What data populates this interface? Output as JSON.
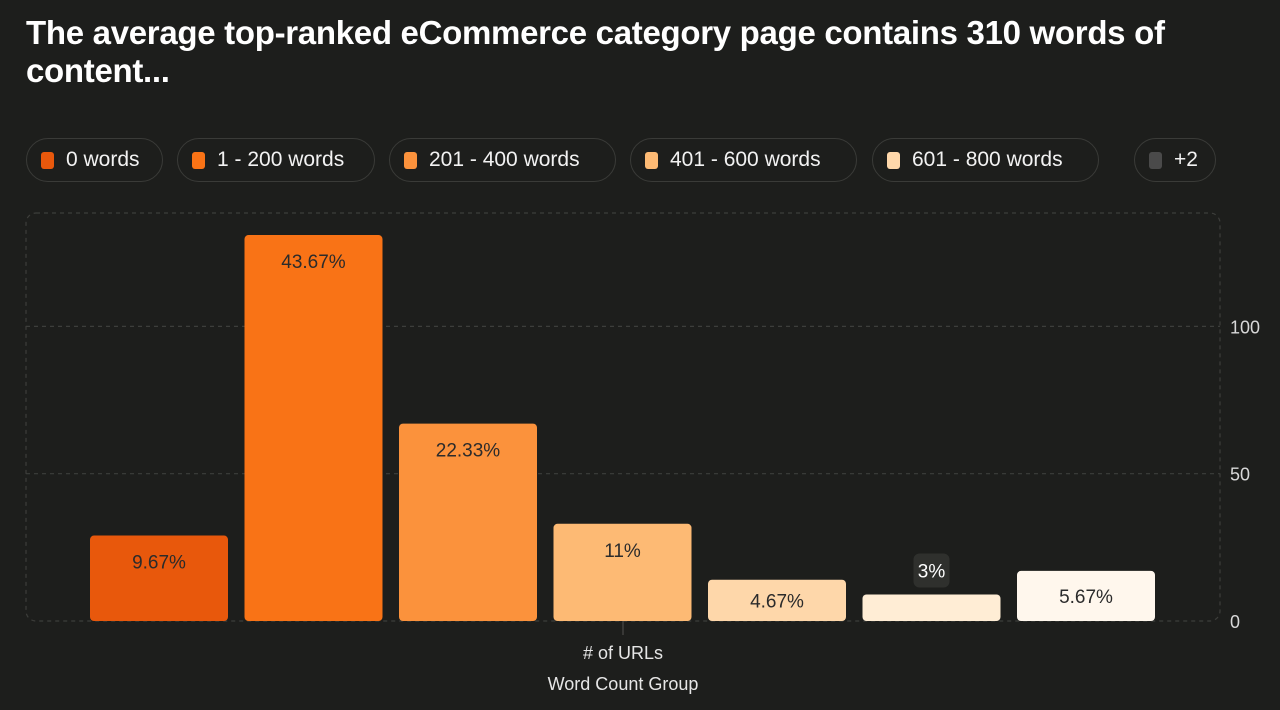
{
  "title": "The average top-ranked eCommerce category page contains 310 words of content...",
  "legend": [
    {
      "label": "0 words",
      "color": "#e8580c"
    },
    {
      "label": "1 - 200 words",
      "color": "#f97316"
    },
    {
      "label": "201 - 400 words",
      "color": "#fb923c"
    },
    {
      "label": "401 - 600 words",
      "color": "#fdba74"
    },
    {
      "label": "601 - 800 words",
      "color": "#fed7aa"
    },
    {
      "label": "+2",
      "color": "#4a4a4a"
    }
  ],
  "chart_data": {
    "type": "bar",
    "categories": [
      "0 words",
      "1 - 200 words",
      "201 - 400 words",
      "401 - 600 words",
      "601 - 800 words",
      "",
      ""
    ],
    "values": [
      29,
      131,
      67,
      33,
      14,
      9,
      17
    ],
    "data_labels": [
      "9.67%",
      "43.67%",
      "22.33%",
      "11%",
      "4.67%",
      "3%",
      "5.67%"
    ],
    "colors": [
      "#e8580c",
      "#f97316",
      "#fb923c",
      "#fdba74",
      "#fed7aa",
      "#ffedd5",
      "#fff7ed"
    ],
    "yticks": [
      0,
      50,
      100
    ],
    "ylim": [
      0,
      130
    ],
    "ylabel": "# of URLs",
    "xlabel": "Word Count Group",
    "grid": true,
    "y_axis_position": "right"
  }
}
